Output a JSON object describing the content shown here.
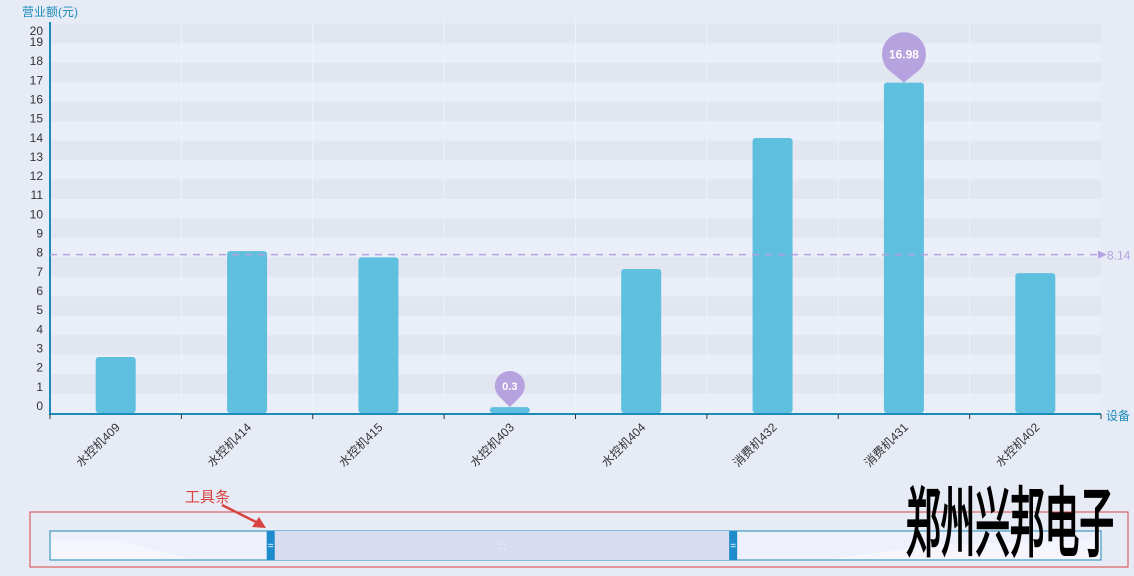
{
  "chart_data": {
    "type": "bar",
    "ylabel": "营业额(元)",
    "xlabel": "设备",
    "ylim": [
      0,
      20
    ],
    "yticks": [
      0,
      1,
      2,
      3,
      4,
      5,
      6,
      7,
      8,
      9,
      10,
      11,
      12,
      13,
      14,
      15,
      16,
      17,
      18,
      19,
      20
    ],
    "categories": [
      "水控机409",
      "水控机414",
      "水控机415",
      "水控机403",
      "水控机404",
      "消费机432",
      "消费机431",
      "水控机402"
    ],
    "values": [
      2.88,
      8.32,
      8.0,
      0.3,
      7.4,
      14.13,
      16.98,
      7.19
    ],
    "mark_points": [
      {
        "label": "16.98",
        "category": "消费机431",
        "type": "max"
      },
      {
        "label": "0.3",
        "category": "水控机403",
        "type": "min"
      }
    ],
    "mark_line": {
      "label": "8.14",
      "value": 8.14,
      "type": "average"
    },
    "colors": {
      "bar": "#5fbfdf",
      "mark": "#b6a2de",
      "axis": "#1d8bb8"
    },
    "grid": "striped"
  },
  "datazoom": {
    "start_percent": 21,
    "end_percent": 65
  },
  "annotation": {
    "label": "工具条",
    "color": "#d9433f"
  },
  "watermark": "郑州兴邦电子"
}
